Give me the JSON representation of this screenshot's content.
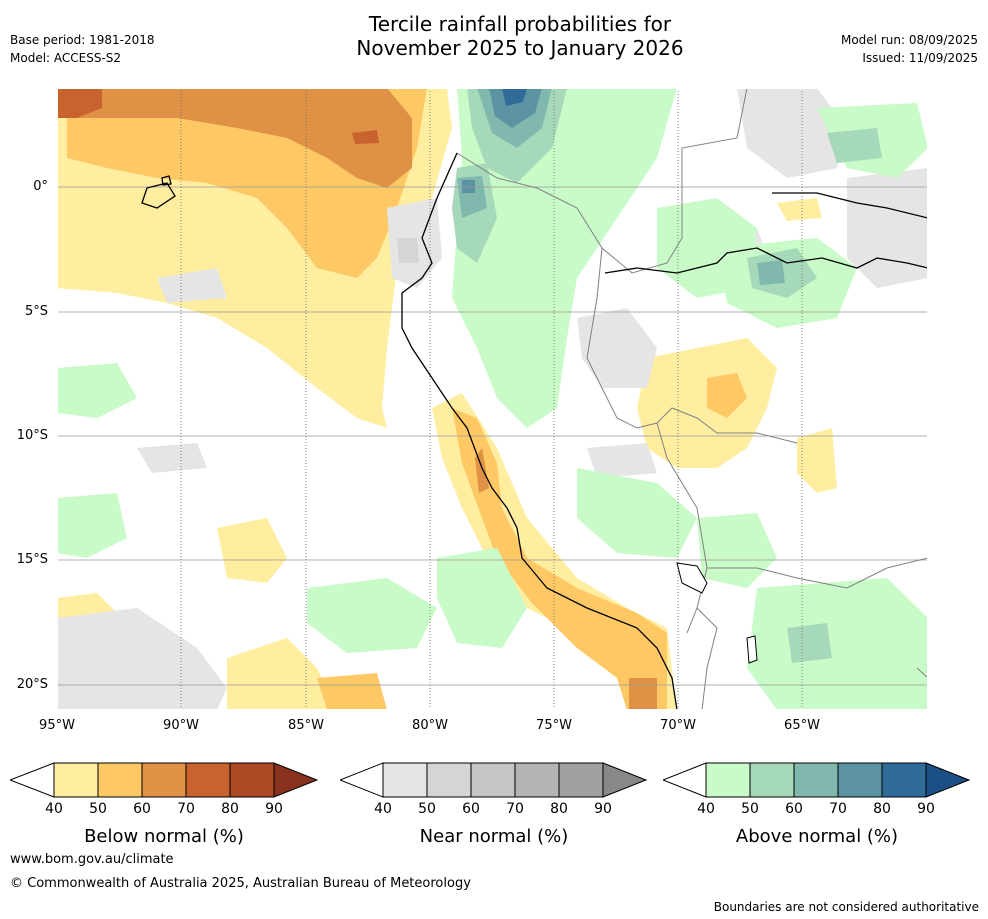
{
  "header": {
    "title_line1": "Tercile rainfall probabilities for",
    "title_line2": "November 2025 to January 2026",
    "base_period": "Base period: 1981-2018",
    "model": "Model: ACCESS-S2",
    "model_run": "Model run: 08/09/2025",
    "issued": "Issued: 11/09/2025"
  },
  "map": {
    "lat_labels": [
      "0°",
      "5°S",
      "10°S",
      "15°S",
      "20°S"
    ],
    "lon_labels": [
      "95°W",
      "90°W",
      "85°W",
      "80°W",
      "75°W",
      "70°W",
      "65°W"
    ]
  },
  "colorbars": [
    {
      "id": "below",
      "title": "Below normal (%)",
      "ticks": [
        "40",
        "50",
        "60",
        "70",
        "80",
        "90"
      ],
      "colors": [
        "#ffeda0",
        "#fec965",
        "#df9245",
        "#c8622f",
        "#ad4a25"
      ],
      "over_color": "#8a3220"
    },
    {
      "id": "near",
      "title": "Near normal (%)",
      "ticks": [
        "40",
        "50",
        "60",
        "70",
        "80",
        "90"
      ],
      "colors": [
        "#e5e5e5",
        "#d5d5d5",
        "#c5c5c5",
        "#b4b4b4",
        "#a0a0a0"
      ],
      "over_color": "#888888"
    },
    {
      "id": "above",
      "title": "Above normal (%)",
      "ticks": [
        "40",
        "50",
        "60",
        "70",
        "80",
        "90"
      ],
      "colors": [
        "#c8fbc8",
        "#a6d9ba",
        "#80b8ae",
        "#5b93a3",
        "#316b98"
      ],
      "over_color": "#1b4f86"
    }
  ],
  "footer": {
    "website": "www.bom.gov.au/climate",
    "copyright": "© Commonwealth of Australia 2025, Australian Bureau of Meteorology",
    "disclaimer": "Boundaries are not considered authoritative"
  }
}
